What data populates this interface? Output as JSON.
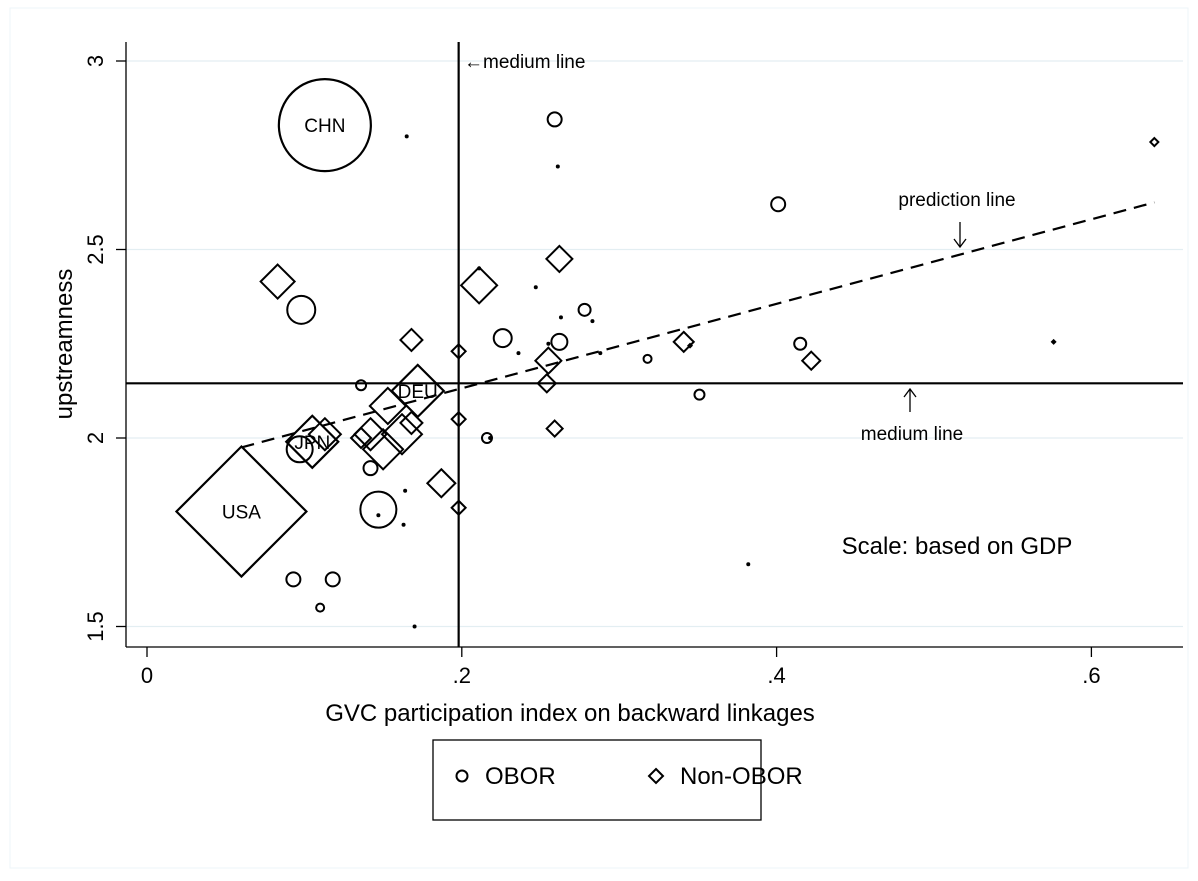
{
  "chart_data": {
    "type": "scatter",
    "xlabel": "GVC participation index on backward linkages",
    "ylabel": "upstreamness",
    "xlim": [
      -0.03,
      0.655
    ],
    "ylim": [
      1.47,
      3.05
    ],
    "x_ticks": [
      0,
      0.2,
      0.4,
      0.6
    ],
    "x_tick_labels": [
      "0",
      ".2",
      ".4",
      ".6"
    ],
    "y_ticks": [
      1.5,
      2,
      2.5,
      3
    ],
    "y_tick_labels": [
      "1.5",
      "2",
      "2.5",
      "3"
    ],
    "grid": "horizontal",
    "legend_position": "bottom",
    "legend": [
      {
        "symbol": "circle",
        "label": "OBOR"
      },
      {
        "symbol": "diamond",
        "label": "Non-OBOR"
      }
    ],
    "reference_lines": {
      "vertical_x": 0.198,
      "horizontal_y": 2.145,
      "vertical_label": "←medium line",
      "horizontal_label": "medium line"
    },
    "prediction_line": {
      "label": "prediction line",
      "x": [
        0.06,
        0.64
      ],
      "y": [
        1.975,
        2.625
      ]
    },
    "annotations": {
      "scale_note": "Scale: based on GDP"
    },
    "series": [
      {
        "name": "OBOR",
        "marker": "circle",
        "points": [
          {
            "x": 0.113,
            "y": 2.83,
            "size": 46,
            "label": "CHN"
          },
          {
            "x": 0.098,
            "y": 2.34,
            "size": 14
          },
          {
            "x": 0.097,
            "y": 1.97,
            "size": 13
          },
          {
            "x": 0.147,
            "y": 1.81,
            "size": 18
          },
          {
            "x": 0.093,
            "y": 1.625,
            "size": 7
          },
          {
            "x": 0.118,
            "y": 1.625,
            "size": 7
          },
          {
            "x": 0.11,
            "y": 1.55,
            "size": 4
          },
          {
            "x": 0.17,
            "y": 1.5,
            "size": 3
          },
          {
            "x": 0.136,
            "y": 2.14,
            "size": 5
          },
          {
            "x": 0.142,
            "y": 1.92,
            "size": 7
          },
          {
            "x": 0.165,
            "y": 2.8,
            "size": 2
          },
          {
            "x": 0.164,
            "y": 1.86,
            "size": 2
          },
          {
            "x": 0.147,
            "y": 1.795,
            "size": 2
          },
          {
            "x": 0.163,
            "y": 1.77,
            "size": 2
          },
          {
            "x": 0.259,
            "y": 2.845,
            "size": 7
          },
          {
            "x": 0.261,
            "y": 2.72,
            "size": 2
          },
          {
            "x": 0.226,
            "y": 2.265,
            "size": 9
          },
          {
            "x": 0.262,
            "y": 2.255,
            "size": 8
          },
          {
            "x": 0.216,
            "y": 2.0,
            "size": 5
          },
          {
            "x": 0.218,
            "y": 2.0,
            "size": 3
          },
          {
            "x": 0.278,
            "y": 2.34,
            "size": 6
          },
          {
            "x": 0.283,
            "y": 2.31,
            "size": 3
          },
          {
            "x": 0.263,
            "y": 2.32,
            "size": 3
          },
          {
            "x": 0.255,
            "y": 2.25,
            "size": 3
          },
          {
            "x": 0.247,
            "y": 2.4,
            "size": 2
          },
          {
            "x": 0.211,
            "y": 2.45,
            "size": 2
          },
          {
            "x": 0.236,
            "y": 2.225,
            "size": 2
          },
          {
            "x": 0.288,
            "y": 2.225,
            "size": 2
          },
          {
            "x": 0.318,
            "y": 2.21,
            "size": 4
          },
          {
            "x": 0.351,
            "y": 2.115,
            "size": 5
          },
          {
            "x": 0.401,
            "y": 2.62,
            "size": 7
          },
          {
            "x": 0.415,
            "y": 2.25,
            "size": 6
          },
          {
            "x": 0.382,
            "y": 1.665,
            "size": 2
          }
        ]
      },
      {
        "name": "Non-OBOR",
        "marker": "diamond",
        "points": [
          {
            "x": 0.06,
            "y": 1.805,
            "size": 65,
            "label": "USA"
          },
          {
            "x": 0.172,
            "y": 2.125,
            "size": 26,
            "label": "DEU"
          },
          {
            "x": 0.105,
            "y": 1.99,
            "size": 26,
            "label": "JPN"
          },
          {
            "x": 0.083,
            "y": 2.415,
            "size": 17
          },
          {
            "x": 0.211,
            "y": 2.405,
            "size": 18
          },
          {
            "x": 0.168,
            "y": 2.26,
            "size": 11
          },
          {
            "x": 0.262,
            "y": 2.475,
            "size": 13
          },
          {
            "x": 0.113,
            "y": 2.01,
            "size": 16
          },
          {
            "x": 0.142,
            "y": 2.01,
            "size": 16
          },
          {
            "x": 0.15,
            "y": 1.97,
            "size": 20
          },
          {
            "x": 0.162,
            "y": 2.01,
            "size": 20
          },
          {
            "x": 0.153,
            "y": 2.085,
            "size": 18
          },
          {
            "x": 0.136,
            "y": 2.0,
            "size": 10
          },
          {
            "x": 0.168,
            "y": 2.04,
            "size": 11
          },
          {
            "x": 0.187,
            "y": 1.88,
            "size": 14
          },
          {
            "x": 0.198,
            "y": 2.23,
            "size": 7
          },
          {
            "x": 0.198,
            "y": 2.05,
            "size": 7
          },
          {
            "x": 0.198,
            "y": 1.815,
            "size": 7
          },
          {
            "x": 0.255,
            "y": 2.205,
            "size": 13
          },
          {
            "x": 0.254,
            "y": 2.145,
            "size": 9
          },
          {
            "x": 0.259,
            "y": 2.025,
            "size": 8
          },
          {
            "x": 0.341,
            "y": 2.255,
            "size": 10
          },
          {
            "x": 0.345,
            "y": 2.245,
            "size": 2
          },
          {
            "x": 0.422,
            "y": 2.205,
            "size": 9
          },
          {
            "x": 0.576,
            "y": 2.255,
            "size": 3
          },
          {
            "x": 0.64,
            "y": 2.785,
            "size": 4
          }
        ]
      }
    ]
  }
}
